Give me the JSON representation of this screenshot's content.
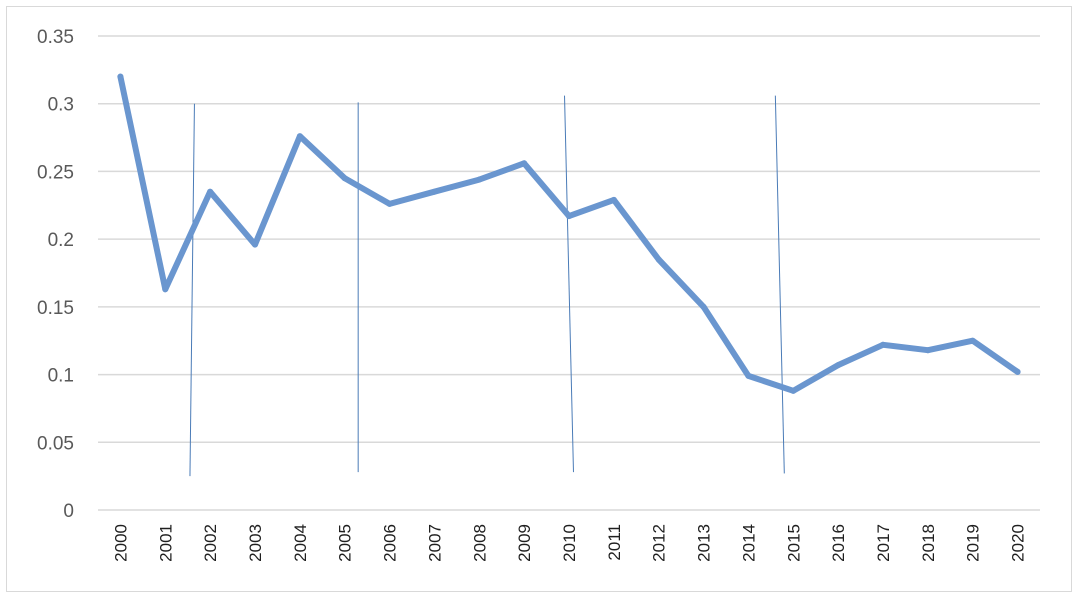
{
  "chart_data": {
    "type": "line",
    "title": "",
    "xlabel": "",
    "ylabel": "",
    "ylim": [
      0,
      0.35
    ],
    "y_ticks": [
      "0",
      "0.05",
      "0.1",
      "0.15",
      "0.2",
      "0.25",
      "0.3",
      "0.35"
    ],
    "grid": true,
    "legend": "none",
    "x": [
      "2000",
      "2001",
      "2002",
      "2003",
      "2004",
      "2005",
      "2006",
      "2007",
      "2008",
      "2009",
      "2010",
      "2011",
      "2012",
      "2013",
      "2014",
      "2015",
      "2016",
      "2017",
      "2018",
      "2019",
      "2020"
    ],
    "series": [
      {
        "name": "",
        "color": "#6a96cf",
        "values": [
          0.32,
          0.163,
          0.235,
          0.196,
          0.276,
          0.245,
          0.226,
          0.235,
          0.244,
          0.256,
          0.217,
          0.229,
          0.185,
          0.15,
          0.099,
          0.088,
          0.107,
          0.122,
          0.118,
          0.125,
          0.102
        ]
      }
    ],
    "annotation_lines": [
      {
        "x_top": 1.65,
        "x_bottom": 1.55,
        "y_top": 0.3,
        "y_bottom": 0.025
      },
      {
        "x_top": 5.3,
        "x_bottom": 5.3,
        "y_top": 0.301,
        "y_bottom": 0.028
      },
      {
        "x_top": 9.9,
        "x_bottom": 10.1,
        "y_top": 0.306,
        "y_bottom": 0.028
      },
      {
        "x_top": 14.6,
        "x_bottom": 14.8,
        "y_top": 0.306,
        "y_bottom": 0.027
      }
    ],
    "colors": {
      "line": "#6a96cf",
      "grid": "#d9d9d9",
      "annotation": "#4a7bb7"
    }
  }
}
